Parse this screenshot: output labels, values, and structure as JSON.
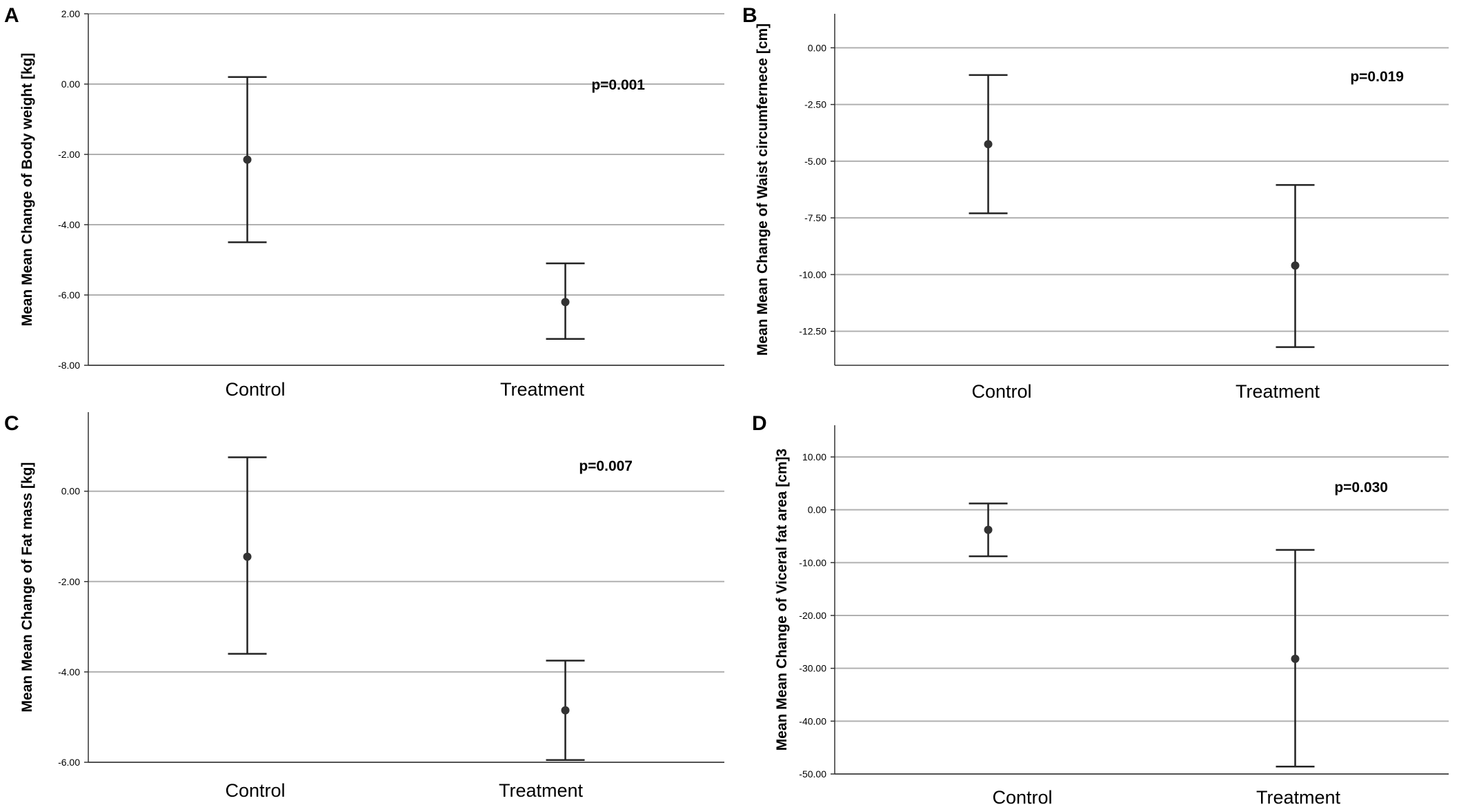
{
  "chart_data": [
    {
      "panel": "A",
      "type": "errorbar",
      "ylabel": "Mean Mean Change of Body weight [kg]",
      "ylim": [
        -8,
        2
      ],
      "yticks": [
        2,
        0,
        -2,
        -4,
        -6,
        -8
      ],
      "ytick_labels": [
        "2.00",
        "0.00",
        "-2.00",
        "-4.00",
        "-6.00",
        "-8.00"
      ],
      "categories": [
        "Control",
        "Treatment"
      ],
      "means": [
        -2.15,
        -6.2
      ],
      "lower": [
        -4.5,
        -7.25
      ],
      "upper": [
        0.2,
        -5.1
      ],
      "annotation": "p=0.001",
      "grid": true
    },
    {
      "panel": "B",
      "type": "errorbar",
      "ylabel": "Mean Mean Change of Waist circumfernece [cm]",
      "ylim": [
        -14,
        1.5
      ],
      "yticks": [
        0,
        -2.5,
        -5,
        -7.5,
        -10,
        -12.5
      ],
      "ytick_labels": [
        "0.00",
        "-2.50",
        "-5.00",
        "-7.50",
        "-10.00",
        "-12.50"
      ],
      "categories": [
        "Control",
        "Treatment"
      ],
      "means": [
        -4.25,
        -9.6
      ],
      "lower": [
        -7.3,
        -13.2
      ],
      "upper": [
        -1.2,
        -6.05
      ],
      "annotation": "p=0.019",
      "grid": true
    },
    {
      "panel": "C",
      "type": "errorbar",
      "ylabel": "Mean Mean Change of Fat mass [kg]",
      "ylim": [
        -6,
        1.75
      ],
      "yticks": [
        0,
        -2,
        -4,
        -6
      ],
      "ytick_labels": [
        "0.00",
        "-2.00",
        "-4.00",
        "-6.00"
      ],
      "categories": [
        "Control",
        "Treatment"
      ],
      "means": [
        -1.45,
        -4.85
      ],
      "lower": [
        -3.6,
        -5.95
      ],
      "upper": [
        0.75,
        -3.75
      ],
      "annotation": "p=0.007",
      "grid": true
    },
    {
      "panel": "D",
      "type": "errorbar",
      "ylabel": "Mean Mean Change of Viceral fat area [cm]3",
      "ylim": [
        -50,
        16
      ],
      "yticks": [
        10,
        0,
        -10,
        -20,
        -30,
        -40,
        -50
      ],
      "ytick_labels": [
        "10.00",
        "0.00",
        "-10.00",
        "-20.00",
        "-30.00",
        "-40.00",
        "-50.00"
      ],
      "categories": [
        "Control",
        "Treatment"
      ],
      "means": [
        -3.8,
        -28.2
      ],
      "lower": [
        -8.8,
        -48.6
      ],
      "upper": [
        1.2,
        -7.6
      ],
      "annotation": "p=0.030",
      "grid": true
    }
  ]
}
